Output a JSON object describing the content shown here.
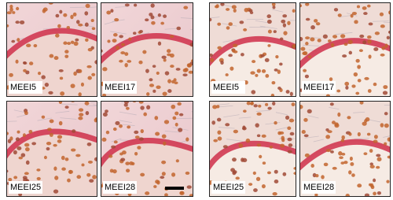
{
  "panels": [
    {
      "labels": [
        "MEEI5",
        "MEEI17",
        "MEEI25",
        "MEEI28"
      ]
    },
    {
      "labels": [
        "MEEI5",
        "MEEI17",
        "MEEI25",
        "MEEI28"
      ]
    }
  ]
}
